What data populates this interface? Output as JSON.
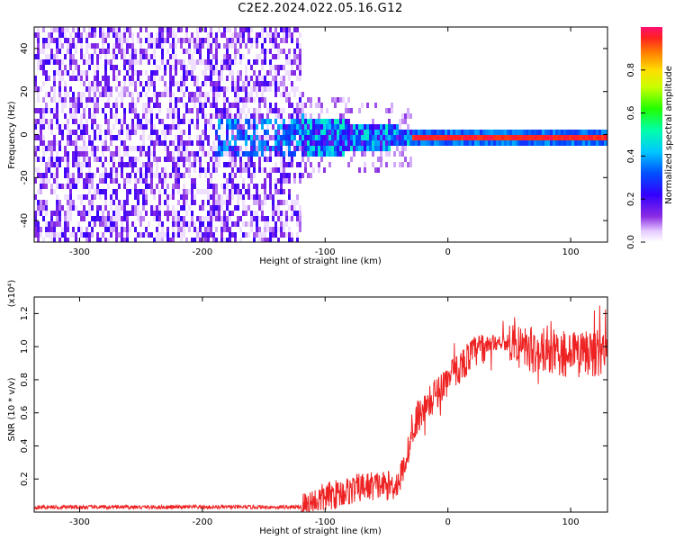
{
  "title": "C2E2.2024.022.05.16.G12",
  "colors": {
    "snr_line": "#ee2222",
    "spectrogram_noise": "#6a1fe6",
    "spectrogram_band": "#00c8ff",
    "spectrogram_peak": "#ff3030"
  },
  "chart_data": [
    {
      "type": "heatmap",
      "title": "C2E2.2024.022.05.16.G12",
      "xlabel": "Height of straight line (km)",
      "ylabel": "Frequency (Hz)",
      "xlim": [
        -337,
        130
      ],
      "ylim": [
        -50,
        50
      ],
      "x_ticks": [
        -300,
        -200,
        -100,
        0,
        100
      ],
      "y_ticks": [
        -40,
        -20,
        0,
        20,
        40
      ],
      "colorbar": {
        "label": "Normalized spectral amplitude",
        "range": [
          0,
          1
        ],
        "ticks": [
          "0.0",
          "0.2",
          "0.4",
          "0.6",
          "0.8"
        ]
      },
      "regions": [
        {
          "x_range": [
            -337,
            -120
          ],
          "description_level": 0.15,
          "freq_spread": 50
        },
        {
          "x_range": [
            -120,
            -30
          ],
          "description_level": 0.35,
          "freq_spread": 12
        },
        {
          "x_range": [
            -30,
            130
          ],
          "description_level": 0.95,
          "freq_spread": 2
        }
      ]
    },
    {
      "type": "line",
      "xlabel": "Height of straight line (km)",
      "ylabel": "SNR (10 * v/v)",
      "y_multiplier": "(x10⁴)",
      "xlim": [
        -337,
        130
      ],
      "ylim": [
        0,
        1.3
      ],
      "x_ticks": [
        -300,
        -200,
        -100,
        0,
        100
      ],
      "y_ticks": [
        "0.2",
        "0.4",
        "0.6",
        "0.8",
        "1.0",
        "1.2"
      ],
      "series": [
        {
          "x": [
            -337,
            -300,
            -250,
            -200,
            -150,
            -120,
            -110,
            -100,
            -90,
            -80,
            -70,
            -60,
            -50,
            -45,
            -40,
            -35,
            -30,
            -25,
            -20,
            -15,
            -10,
            -5,
            0,
            5,
            10,
            15,
            20,
            25,
            30,
            35,
            40,
            45,
            50,
            60,
            70,
            80,
            90,
            100,
            110,
            120,
            130
          ],
          "y": [
            0.03,
            0.03,
            0.03,
            0.03,
            0.03,
            0.03,
            0.06,
            0.09,
            0.11,
            0.13,
            0.15,
            0.16,
            0.16,
            0.16,
            0.18,
            0.3,
            0.44,
            0.58,
            0.62,
            0.66,
            0.72,
            0.76,
            0.8,
            0.84,
            0.88,
            0.92,
            0.96,
            0.98,
            1.0,
            1.02,
            1.03,
            1.03,
            1.02,
            0.99,
            0.98,
            0.97,
            0.96,
            0.95,
            0.95,
            0.96,
            0.97
          ]
        }
      ]
    }
  ]
}
